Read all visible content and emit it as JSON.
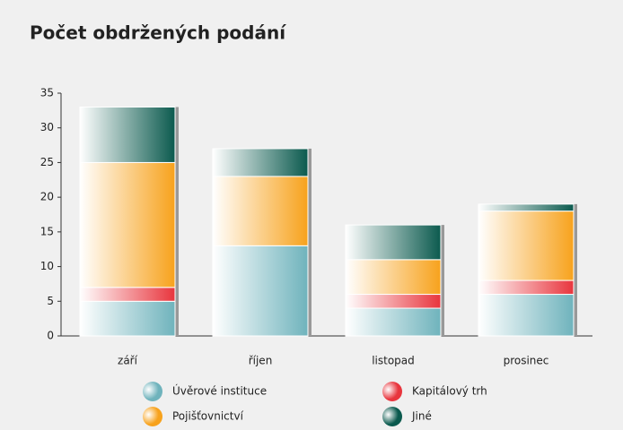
{
  "chart_data": {
    "type": "stacked_bar",
    "title": "Počet obdržených podání",
    "categories": [
      "září",
      "říjen",
      "listopad",
      "prosinec"
    ],
    "series": [
      {
        "name": "Úvěrové instituce",
        "color": "#6fb3bc",
        "values": [
          5,
          13,
          4,
          6
        ]
      },
      {
        "name": "Kapitálový trh",
        "color": "#e8353d",
        "values": [
          2,
          0,
          2,
          2
        ]
      },
      {
        "name": "Pojišťovnictví",
        "color": "#f7a21c",
        "values": [
          18,
          10,
          5,
          10
        ]
      },
      {
        "name": "Jiné",
        "color": "#0b5a4e",
        "values": [
          8,
          4,
          5,
          1
        ]
      }
    ],
    "ylim": [
      0,
      35
    ],
    "yticks": [
      0,
      5,
      10,
      15,
      20,
      25,
      30,
      35
    ]
  }
}
